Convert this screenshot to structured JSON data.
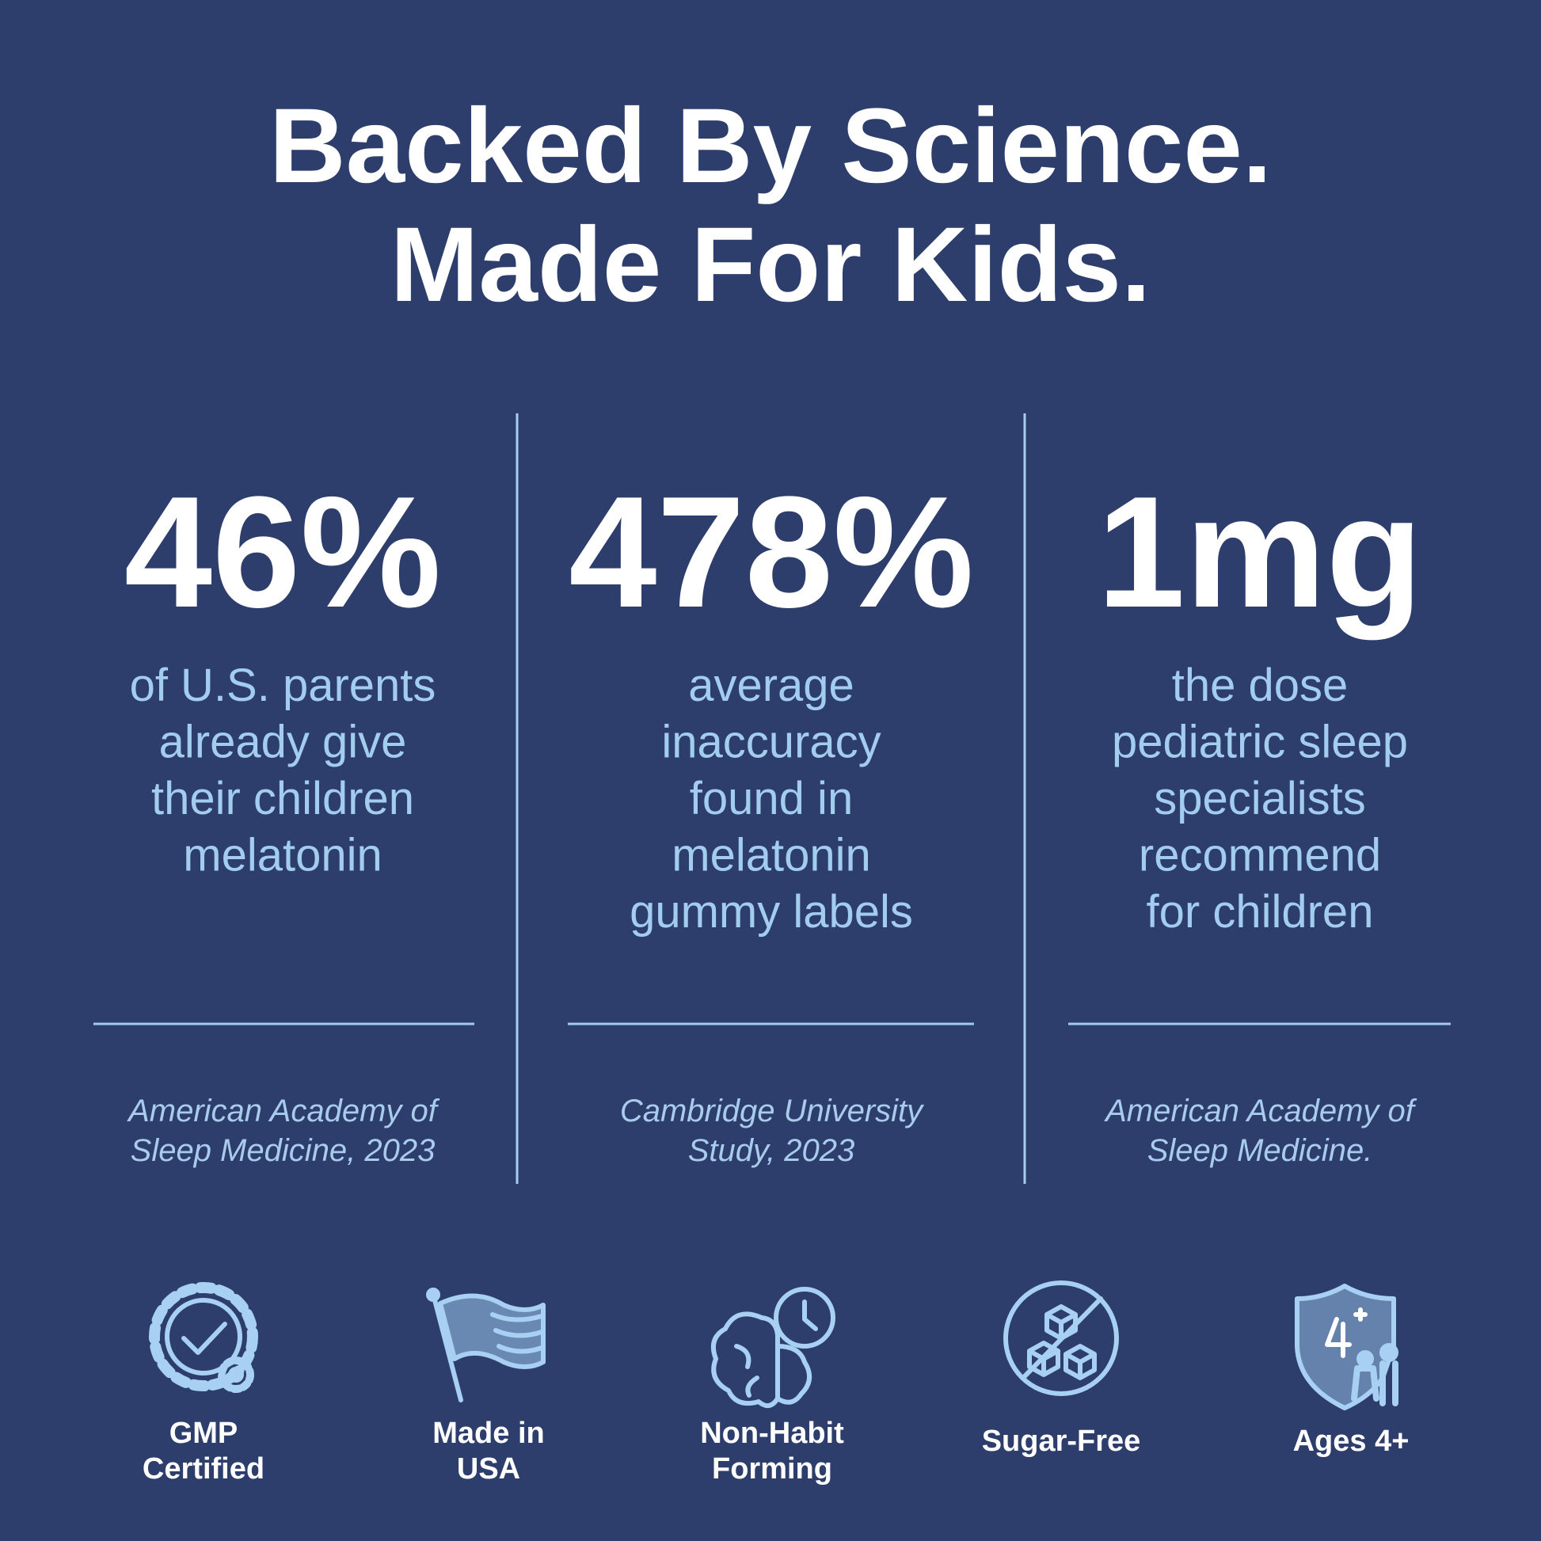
{
  "header": {
    "title_lines": [
      "Backed By Science.",
      "Made For Kids."
    ]
  },
  "stats": [
    {
      "value": "46%",
      "description_lines": [
        "of U.S. parents",
        "already give",
        "their children",
        "melatonin"
      ],
      "source_lines": [
        "American Academy of",
        "Sleep Medicine, 2023"
      ]
    },
    {
      "value": "478%",
      "description_lines": [
        "average",
        "inaccuracy",
        "found in",
        "melatonin",
        "gummy labels"
      ],
      "source_lines": [
        "Cambridge University",
        "Study, 2023"
      ]
    },
    {
      "value": "1mg",
      "description_lines": [
        "the dose",
        "pediatric sleep",
        "specialists",
        "recommend",
        "for children"
      ],
      "source_lines": [
        "American Academy of",
        "Sleep Medicine."
      ]
    }
  ],
  "badges": [
    {
      "label_lines": [
        "GMP",
        "Certified"
      ]
    },
    {
      "label_lines": [
        "Made in",
        "USA"
      ]
    },
    {
      "label_lines": [
        "Non-Habit",
        "Forming"
      ]
    },
    {
      "label_lines": [
        "Sugar-Free"
      ]
    },
    {
      "label_lines": [
        "Ages 4+"
      ]
    }
  ]
}
